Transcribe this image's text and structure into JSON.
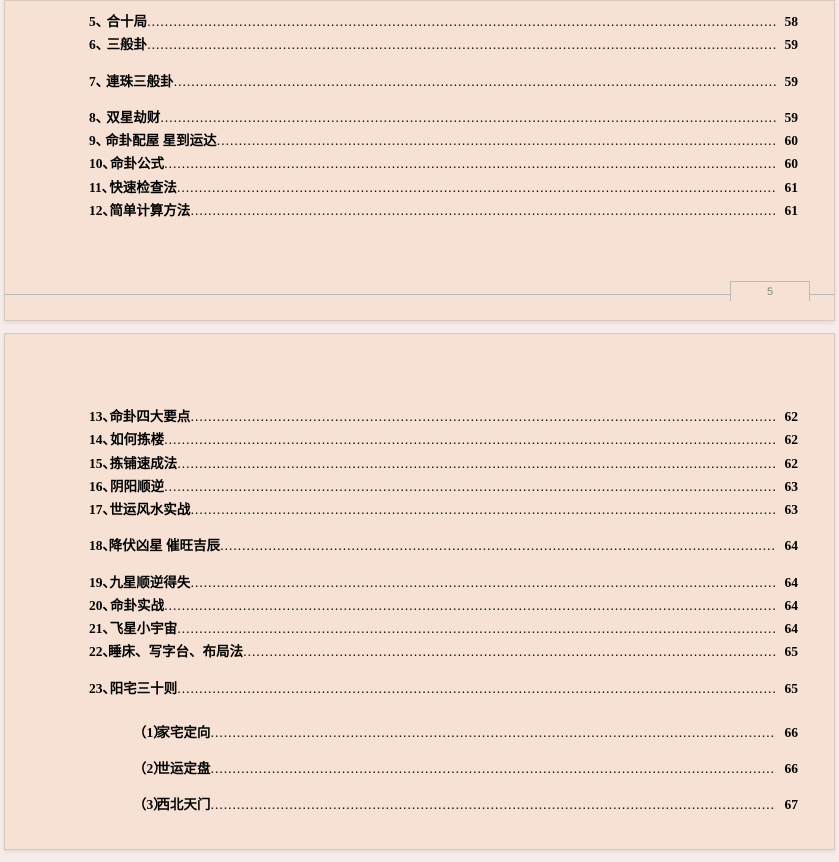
{
  "page1": {
    "number": "5",
    "items": [
      {
        "n": "5、",
        "t": "合十局",
        "p": "58",
        "spaced": false
      },
      {
        "n": "6、",
        "t": "三般卦",
        "p": "59",
        "spaced": false
      },
      {
        "n": "7、",
        "t": "連珠三般卦",
        "p": "59",
        "spaced": true
      },
      {
        "n": "8、",
        "t": "双星劫财",
        "p": "59",
        "spaced": true
      },
      {
        "n": "9、",
        "t": "命卦配屋  星到运达",
        "p": "60",
        "spaced": false
      },
      {
        "n": "10、",
        "t": "命卦公式",
        "p": "60",
        "spaced": false
      },
      {
        "n": "11、",
        "t": "快速检查法",
        "p": "61",
        "spaced": false
      },
      {
        "n": "12、",
        "t": "简单计算方法",
        "p": "61",
        "spaced": false
      }
    ]
  },
  "page2": {
    "items": [
      {
        "n": "13、",
        "t": "命卦四大要点",
        "p": "62",
        "spaced": false
      },
      {
        "n": "14、",
        "t": "如何拣楼",
        "p": "62",
        "spaced": false
      },
      {
        "n": "15、",
        "t": "拣铺速成法",
        "p": "62",
        "spaced": false
      },
      {
        "n": "16、",
        "t": "阴阳顺逆",
        "p": "63",
        "spaced": false
      },
      {
        "n": "17、",
        "t": "世运风水实战",
        "p": "63",
        "spaced": false
      },
      {
        "n": "18、",
        "t": "降伏凶星  催旺吉辰",
        "p": "64",
        "spaced": true
      },
      {
        "n": "19、",
        "t": "九星顺逆得失",
        "p": "64",
        "spaced": true
      },
      {
        "n": "20、",
        "t": "命卦实战",
        "p": "64",
        "spaced": false
      },
      {
        "n": "21、",
        "t": "飞星小宇宙",
        "p": "64",
        "spaced": false
      },
      {
        "n": "22、",
        "t": "睡床、写字台、布局法",
        "p": "65",
        "spaced": false
      },
      {
        "n": "23、",
        "t": "阳宅三十则 ",
        "p": "65",
        "spaced": true
      }
    ],
    "subs": [
      {
        "n": "（1）",
        "t": "家宅定向 ",
        "p": "66"
      },
      {
        "n": "（2）",
        "t": "世运定盘 ",
        "p": "66"
      },
      {
        "n": "（3）",
        "t": "西北天门 ",
        "p": "67"
      }
    ]
  },
  "dots": "........................................................................................................................................................................................................................................................"
}
